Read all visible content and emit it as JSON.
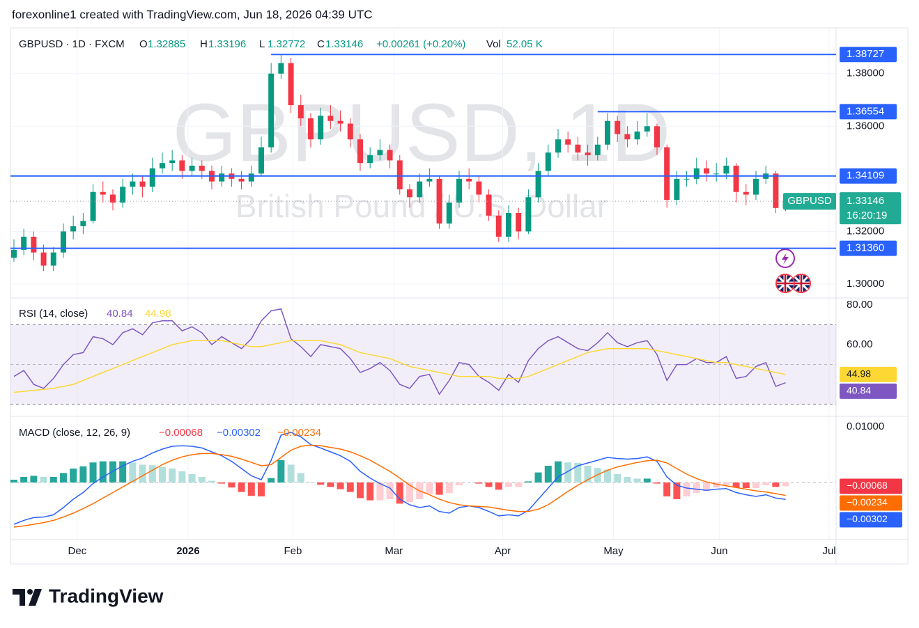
{
  "header": {
    "attribution": "forexonline1 created with TradingView.com, Jun 18, 2026 04:39 UTC"
  },
  "footer": {
    "brand": "TradingView"
  },
  "chart_data": [
    {
      "type": "candlestick",
      "title": "GBPUSD · 1D · FXCM",
      "watermark": "GBPUSD, 1D",
      "subtitle": "British Pound / U.S. Dollar",
      "ohlc_labels": [
        "O",
        "H",
        "L",
        "C"
      ],
      "change": "+0.00261 (+0.20%)",
      "volume_label": "Vol",
      "volume": "52.05 K",
      "up_color": "#089981",
      "down_color": "#f23645",
      "level_color": "#2962ff",
      "xlim": [
        -0.35,
        83.1
      ],
      "ylim": [
        1.2947,
        1.3974
      ],
      "yticks": [
        {
          "value": 1.38,
          "label": "1.38000"
        },
        {
          "value": 1.36,
          "label": "1.36000"
        },
        {
          "value": 1.32,
          "label": "1.32000"
        },
        {
          "value": 1.3,
          "label": "1.30000"
        }
      ],
      "levels": [
        {
          "value": 1.38727,
          "start": 26
        },
        {
          "value": 1.36554,
          "start": 59
        },
        {
          "value": 1.34109
        },
        {
          "value": 1.3136,
          "label": "1.31360"
        }
      ],
      "last_price": {
        "symbol": "GBPUSD",
        "value": 1.33146,
        "countdown": "16:20:19",
        "color": "#22ab94"
      },
      "candles": [
        [
          1.31,
          1.317,
          1.3085,
          1.313
        ],
        [
          1.313,
          1.321,
          1.311,
          1.318
        ],
        [
          1.318,
          1.32,
          1.309,
          1.312
        ],
        [
          1.312,
          1.315,
          1.305,
          1.307
        ],
        [
          1.307,
          1.314,
          1.305,
          1.312
        ],
        [
          1.312,
          1.323,
          1.31,
          1.32
        ],
        [
          1.32,
          1.326,
          1.317,
          1.322
        ],
        [
          1.322,
          1.327,
          1.319,
          1.324
        ],
        [
          1.324,
          1.338,
          1.323,
          1.335
        ],
        [
          1.335,
          1.339,
          1.331,
          1.334
        ],
        [
          1.334,
          1.336,
          1.328,
          1.331
        ],
        [
          1.331,
          1.34,
          1.329,
          1.337
        ],
        [
          1.337,
          1.342,
          1.334,
          1.339
        ],
        [
          1.339,
          1.341,
          1.333,
          1.337
        ],
        [
          1.337,
          1.348,
          1.335,
          1.344
        ],
        [
          1.344,
          1.35,
          1.342,
          1.346
        ],
        [
          1.346,
          1.351,
          1.343,
          1.347
        ],
        [
          1.347,
          1.349,
          1.34,
          1.343
        ],
        [
          1.343,
          1.348,
          1.341,
          1.345
        ],
        [
          1.345,
          1.347,
          1.34,
          1.343
        ],
        [
          1.343,
          1.345,
          1.336,
          1.339
        ],
        [
          1.339,
          1.345,
          1.337,
          1.342
        ],
        [
          1.342,
          1.344,
          1.337,
          1.34
        ],
        [
          1.34,
          1.343,
          1.336,
          1.339
        ],
        [
          1.339,
          1.345,
          1.337,
          1.342
        ],
        [
          1.342,
          1.356,
          1.341,
          1.352
        ],
        [
          1.352,
          1.384,
          1.35,
          1.38
        ],
        [
          1.38,
          1.3873,
          1.378,
          1.384
        ],
        [
          1.384,
          1.386,
          1.365,
          1.368
        ],
        [
          1.368,
          1.372,
          1.36,
          1.363
        ],
        [
          1.363,
          1.365,
          1.352,
          1.355
        ],
        [
          1.355,
          1.367,
          1.353,
          1.364
        ],
        [
          1.364,
          1.368,
          1.359,
          1.362
        ],
        [
          1.362,
          1.366,
          1.358,
          1.361
        ],
        [
          1.361,
          1.363,
          1.352,
          1.355
        ],
        [
          1.355,
          1.357,
          1.343,
          1.346
        ],
        [
          1.346,
          1.352,
          1.344,
          1.349
        ],
        [
          1.349,
          1.355,
          1.347,
          1.351
        ],
        [
          1.351,
          1.353,
          1.344,
          1.347
        ],
        [
          1.347,
          1.349,
          1.334,
          1.336
        ],
        [
          1.336,
          1.338,
          1.329,
          1.333
        ],
        [
          1.333,
          1.342,
          1.331,
          1.339
        ],
        [
          1.339,
          1.344,
          1.337,
          1.34
        ],
        [
          1.34,
          1.341,
          1.321,
          1.323
        ],
        [
          1.323,
          1.334,
          1.321,
          1.331
        ],
        [
          1.331,
          1.343,
          1.329,
          1.34
        ],
        [
          1.34,
          1.344,
          1.336,
          1.339
        ],
        [
          1.339,
          1.341,
          1.331,
          1.334
        ],
        [
          1.334,
          1.336,
          1.324,
          1.326
        ],
        [
          1.326,
          1.328,
          1.316,
          1.318
        ],
        [
          1.318,
          1.33,
          1.316,
          1.327
        ],
        [
          1.327,
          1.329,
          1.317,
          1.32
        ],
        [
          1.32,
          1.336,
          1.319,
          1.333
        ],
        [
          1.333,
          1.346,
          1.331,
          1.343
        ],
        [
          1.343,
          1.353,
          1.341,
          1.35
        ],
        [
          1.35,
          1.359,
          1.348,
          1.355
        ],
        [
          1.355,
          1.358,
          1.35,
          1.353
        ],
        [
          1.353,
          1.356,
          1.347,
          1.35
        ],
        [
          1.35,
          1.353,
          1.345,
          1.349
        ],
        [
          1.349,
          1.356,
          1.347,
          1.353
        ],
        [
          1.353,
          1.365,
          1.351,
          1.362
        ],
        [
          1.362,
          1.364,
          1.354,
          1.357
        ],
        [
          1.357,
          1.36,
          1.352,
          1.355
        ],
        [
          1.355,
          1.362,
          1.353,
          1.358
        ],
        [
          1.358,
          1.365,
          1.356,
          1.36
        ],
        [
          1.36,
          1.361,
          1.349,
          1.352
        ],
        [
          1.352,
          1.353,
          1.329,
          1.332
        ],
        [
          1.332,
          1.343,
          1.33,
          1.34
        ],
        [
          1.34,
          1.343,
          1.337,
          1.34
        ],
        [
          1.34,
          1.348,
          1.338,
          1.344
        ],
        [
          1.344,
          1.347,
          1.339,
          1.342
        ],
        [
          1.342,
          1.346,
          1.339,
          1.342
        ],
        [
          1.342,
          1.348,
          1.34,
          1.345
        ],
        [
          1.345,
          1.346,
          1.331,
          1.335
        ],
        [
          1.335,
          1.338,
          1.33,
          1.334
        ],
        [
          1.334,
          1.343,
          1.332,
          1.34
        ],
        [
          1.34,
          1.345,
          1.338,
          1.342
        ],
        [
          1.342,
          1.343,
          1.327,
          1.3289
        ],
        [
          1.32885,
          1.33196,
          1.32772,
          1.33146
        ]
      ]
    },
    {
      "type": "rsi",
      "title": "RSI (14, close)",
      "xlim": [
        -0.35,
        83.1
      ],
      "ylim": [
        23.9,
        83.5
      ],
      "yticks": [
        {
          "value": 80,
          "label": "80.00"
        },
        {
          "value": 60,
          "label": "60.00"
        }
      ],
      "band": [
        30,
        70
      ],
      "midline": 50,
      "band_color": "#7e57c2",
      "series": [
        {
          "color": "#7e57c2",
          "text_color": "#ffffff",
          "values": [
            44,
            47,
            40,
            38,
            43,
            50,
            55,
            56,
            64,
            63,
            60,
            66,
            68,
            65,
            71,
            72,
            72,
            67,
            69,
            66,
            60,
            64,
            61,
            58,
            63,
            72,
            77,
            78,
            63,
            59,
            54,
            60,
            59,
            58,
            53,
            46,
            48,
            51,
            47,
            40,
            38,
            44,
            45,
            35,
            42,
            51,
            50,
            44,
            41,
            37,
            45,
            41,
            52,
            58,
            62,
            64,
            61,
            58,
            57,
            61,
            66,
            61,
            59,
            61,
            62,
            55,
            42,
            50,
            50,
            53,
            51,
            51,
            54,
            43,
            44,
            49,
            51,
            39,
            40.84
          ]
        },
        {
          "color": "#fdd835",
          "text_color": "#131722",
          "values": [
            36,
            36.5,
            37,
            37.5,
            38,
            39,
            40,
            42,
            44,
            46,
            48,
            50,
            52,
            54,
            56,
            58,
            60,
            61,
            62,
            62,
            62,
            62,
            61,
            60,
            59,
            59,
            60,
            61,
            62,
            62,
            62,
            62,
            61,
            60,
            58,
            56,
            55,
            54,
            53,
            51,
            49,
            48,
            47,
            46,
            45,
            44,
            44,
            44,
            44,
            43,
            43,
            43,
            44,
            46,
            48,
            50,
            52,
            54,
            56,
            57,
            58,
            58,
            58,
            58,
            58,
            57,
            56,
            55,
            54,
            53,
            52,
            51,
            51,
            50,
            49,
            48,
            47,
            46,
            44.98
          ]
        }
      ]
    },
    {
      "type": "macd",
      "title": "MACD (close, 12, 26, 9)",
      "xlim": [
        -0.35,
        83.1
      ],
      "ylim": [
        -0.01025,
        0.011875
      ],
      "yticks": [
        {
          "value": 0.01,
          "label": "0.01000"
        }
      ],
      "xticks": [
        {
          "value": 6.4,
          "label": "Dec"
        },
        {
          "value": 17.6,
          "label": "2026"
        },
        {
          "value": 28.2,
          "label": "Feb"
        },
        {
          "value": 38.4,
          "label": "Mar"
        },
        {
          "value": 49.4,
          "label": "Apr"
        },
        {
          "value": 60.6,
          "label": "May"
        },
        {
          "value": 71.3,
          "label": "Jun"
        },
        {
          "value": 82.4,
          "label": "Jul"
        }
      ],
      "histogram": {
        "color": "#f23645",
        "colors": [
          "#26a69a",
          "#b2dfdb",
          "#ffcdd2",
          "#ff5252"
        ],
        "value_label": "−0.00068",
        "values": [
          0.0005,
          0.001,
          0.0012,
          0.001,
          0.001,
          0.0017,
          0.0025,
          0.0029,
          0.0036,
          0.0038,
          0.0038,
          0.0038,
          0.0036,
          0.0032,
          0.0031,
          0.0028,
          0.0025,
          0.002,
          0.0015,
          0.001,
          0.0003,
          -0.0002,
          -0.0009,
          -0.0017,
          -0.0024,
          -0.0025,
          0.0008,
          0.004,
          0.0032,
          0.0017,
          0.0001,
          -0.0004,
          -0.0008,
          -0.0012,
          -0.0017,
          -0.0028,
          -0.0032,
          -0.0032,
          -0.003,
          -0.0038,
          -0.0035,
          -0.003,
          -0.002,
          -0.0022,
          -0.0019,
          -0.0005,
          0.0,
          -0.0002,
          -0.0008,
          -0.0013,
          -0.0008,
          -0.0008,
          0.0002,
          0.0018,
          0.003,
          0.0038,
          0.0036,
          0.0035,
          0.003,
          0.0026,
          0.0023,
          0.0015,
          0.001,
          0.0007,
          0.0007,
          -0.0002,
          -0.0025,
          -0.003,
          -0.0025,
          -0.0019,
          -0.0015,
          -0.0009,
          -0.0005,
          -0.0009,
          -0.001,
          -0.001,
          -0.0005,
          -0.0008,
          -0.00068
        ]
      },
      "series": [
        {
          "color": "#2962ff",
          "value_label": "−0.00302",
          "values": [
            -0.0075,
            -0.0068,
            -0.0063,
            -0.0062,
            -0.0058,
            -0.0045,
            -0.003,
            -0.0018,
            -0.0002,
            0.001,
            0.002,
            0.003,
            0.0038,
            0.0044,
            0.0053,
            0.006,
            0.0065,
            0.0066,
            0.0065,
            0.0062,
            0.0055,
            0.0048,
            0.0038,
            0.0025,
            0.0012,
            0.0005,
            0.004,
            0.0085,
            0.009,
            0.0082,
            0.0068,
            0.0062,
            0.0055,
            0.0048,
            0.0038,
            0.002,
            0.0008,
            -0.0002,
            -0.001,
            -0.003,
            -0.004,
            -0.0045,
            -0.0042,
            -0.0052,
            -0.0055,
            -0.0045,
            -0.0042,
            -0.0045,
            -0.0052,
            -0.006,
            -0.0058,
            -0.006,
            -0.005,
            -0.003,
            -0.001,
            0.001,
            0.002,
            0.003,
            0.0035,
            0.004,
            0.0045,
            0.0043,
            0.0042,
            0.0043,
            0.0046,
            0.0038,
            0.001,
            -0.0005,
            -0.001,
            -0.0012,
            -0.0014,
            -0.0012,
            -0.0011,
            -0.0018,
            -0.0022,
            -0.0025,
            -0.0022,
            -0.0028,
            -0.00302
          ]
        },
        {
          "color": "#ff6d00",
          "value_label": "−0.00234",
          "values": [
            -0.008,
            -0.0078,
            -0.0075,
            -0.0072,
            -0.0068,
            -0.0062,
            -0.0055,
            -0.0047,
            -0.0038,
            -0.0028,
            -0.0018,
            -0.0008,
            0.0002,
            0.0012,
            0.0022,
            0.0032,
            0.004,
            0.0046,
            0.005,
            0.0052,
            0.0052,
            0.005,
            0.0047,
            0.0042,
            0.0036,
            0.003,
            0.0032,
            0.0045,
            0.0058,
            0.0065,
            0.0067,
            0.0066,
            0.0063,
            0.006,
            0.0055,
            0.0048,
            0.004,
            0.003,
            0.002,
            0.0008,
            -0.0005,
            -0.0015,
            -0.0022,
            -0.003,
            -0.0036,
            -0.004,
            -0.0042,
            -0.0043,
            -0.0044,
            -0.0047,
            -0.005,
            -0.0052,
            -0.0052,
            -0.0048,
            -0.004,
            -0.0028,
            -0.0016,
            -0.0005,
            0.0005,
            0.0014,
            0.0022,
            0.0028,
            0.0032,
            0.0036,
            0.0039,
            0.004,
            0.0035,
            0.0025,
            0.0015,
            0.0007,
            0.0001,
            -0.0003,
            -0.0006,
            -0.0009,
            -0.0012,
            -0.0015,
            -0.0017,
            -0.002,
            -0.00234
          ]
        }
      ]
    }
  ]
}
